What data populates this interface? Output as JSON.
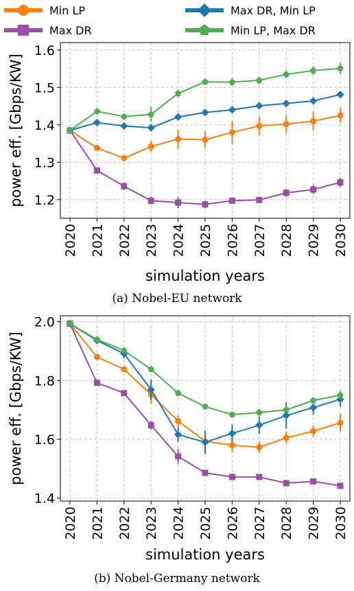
{
  "legend": [
    {
      "name": "Min LP",
      "color": "#ff7f0e",
      "marker": "circle"
    },
    {
      "name": "Max DR",
      "color": "#9b4ea6",
      "marker": "square"
    },
    {
      "name": "Max DR, Min LP",
      "color": "#1f77b4",
      "marker": "diamond"
    },
    {
      "name": "Min LP, Max DR",
      "color": "#4caf50",
      "marker": "pentagon"
    }
  ],
  "chart_data": [
    {
      "type": "line",
      "caption": "(a) Nobel-EU network",
      "xlabel": "simulation years",
      "ylabel": "power eff. [Gbps/KW]",
      "x": [
        "2020",
        "2021",
        "2022",
        "2023",
        "2024",
        "2025",
        "2026",
        "2027",
        "2028",
        "2029",
        "2030"
      ],
      "ylim": [
        1.15,
        1.62
      ],
      "yticks": [
        1.2,
        1.3,
        1.4,
        1.5,
        1.6
      ],
      "ytick_labels": [
        "1.2",
        "1.3",
        "1.4",
        "1.5",
        "1.6"
      ],
      "grid": true,
      "series": [
        {
          "name": "Min LP",
          "color": "#ff7f0e",
          "marker": "circle",
          "values": [
            1.385,
            1.338,
            1.311,
            1.342,
            1.362,
            1.36,
            1.38,
            1.397,
            1.402,
            1.41,
            1.425
          ],
          "errors": [
            0.005,
            0.008,
            0.006,
            0.015,
            0.025,
            0.022,
            0.03,
            0.025,
            0.025,
            0.025,
            0.02
          ]
        },
        {
          "name": "Max DR",
          "color": "#9b4ea6",
          "marker": "square",
          "values": [
            1.385,
            1.278,
            1.236,
            1.197,
            1.192,
            1.187,
            1.197,
            1.199,
            1.218,
            1.227,
            1.246
          ],
          "errors": [
            0.005,
            0.008,
            0.01,
            0.01,
            0.015,
            0.01,
            0.005,
            0.008,
            0.01,
            0.012,
            0.012
          ]
        },
        {
          "name": "Max DR, Min LP",
          "color": "#1f77b4",
          "marker": "diamond",
          "values": [
            1.385,
            1.406,
            1.397,
            1.392,
            1.421,
            1.433,
            1.44,
            1.451,
            1.457,
            1.464,
            1.481
          ],
          "errors": [
            0.005,
            0.008,
            0.008,
            0.01,
            0.008,
            0.008,
            0.008,
            0.008,
            0.008,
            0.008,
            0.008
          ]
        },
        {
          "name": "Min LP, Max DR",
          "color": "#4caf50",
          "marker": "pentagon",
          "values": [
            1.385,
            1.436,
            1.422,
            1.428,
            1.484,
            1.515,
            1.514,
            1.519,
            1.535,
            1.545,
            1.551
          ],
          "errors": [
            0.005,
            0.008,
            0.008,
            0.02,
            0.01,
            0.008,
            0.01,
            0.01,
            0.01,
            0.012,
            0.015
          ]
        }
      ]
    },
    {
      "type": "line",
      "caption": "(b) Nobel-Germany network",
      "xlabel": "simulation years",
      "ylabel": "power eff. [Gbps/KW]",
      "x": [
        "2020",
        "2021",
        "2022",
        "2023",
        "2024",
        "2025",
        "2026",
        "2027",
        "2028",
        "2029",
        "2030"
      ],
      "ylim": [
        1.39,
        2.02
      ],
      "yticks": [
        1.4,
        1.6,
        1.8,
        2.0
      ],
      "ytick_labels": [
        "1.4",
        "1.6",
        "1.8",
        "2.0"
      ],
      "grid": true,
      "series": [
        {
          "name": "Min LP",
          "color": "#ff7f0e",
          "marker": "circle",
          "values": [
            1.993,
            1.88,
            1.838,
            1.752,
            1.662,
            1.593,
            1.58,
            1.573,
            1.605,
            1.628,
            1.656
          ],
          "errors": [
            0.005,
            0.008,
            0.008,
            0.03,
            0.02,
            0.02,
            0.025,
            0.02,
            0.02,
            0.02,
            0.03
          ]
        },
        {
          "name": "Max DR",
          "color": "#9b4ea6",
          "marker": "square",
          "values": [
            1.993,
            1.792,
            1.757,
            1.648,
            1.542,
            1.486,
            1.472,
            1.472,
            1.451,
            1.457,
            1.442
          ],
          "errors": [
            0.005,
            0.008,
            0.008,
            0.015,
            0.025,
            0.01,
            0.008,
            0.008,
            0.008,
            0.008,
            0.008
          ]
        },
        {
          "name": "Max DR, Min LP",
          "color": "#1f77b4",
          "marker": "diamond",
          "values": [
            1.993,
            1.936,
            1.891,
            1.769,
            1.616,
            1.59,
            1.62,
            1.648,
            1.681,
            1.708,
            1.736
          ],
          "errors": [
            0.005,
            0.01,
            0.015,
            0.035,
            0.025,
            0.04,
            0.03,
            0.03,
            0.045,
            0.025,
            0.025
          ]
        },
        {
          "name": "Min LP, Max DR",
          "color": "#4caf50",
          "marker": "pentagon",
          "values": [
            1.993,
            1.939,
            1.902,
            1.838,
            1.757,
            1.711,
            1.684,
            1.691,
            1.7,
            1.732,
            1.75
          ],
          "errors": [
            0.005,
            0.008,
            0.008,
            0.01,
            0.01,
            0.008,
            0.008,
            0.01,
            0.01,
            0.012,
            0.015
          ]
        }
      ]
    }
  ]
}
